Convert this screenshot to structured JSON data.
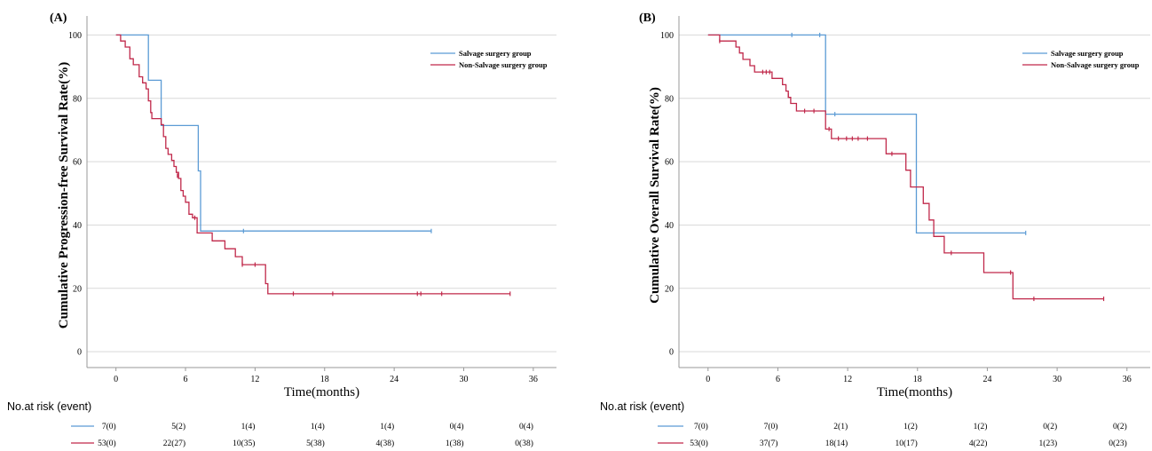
{
  "colors": {
    "salvage": "#5b9bd5",
    "non_salvage": "#c0284a",
    "grid": "#d9d9d9"
  },
  "chart_data": [
    {
      "type": "line",
      "subtype": "kaplan-meier",
      "panel_label": "(A)",
      "xlabel": "Time(months)",
      "ylabel": "Cumulative Progression-free Survival Rate(%)",
      "xlim": [
        -2.5,
        38
      ],
      "ylim": [
        -5,
        106
      ],
      "xticks": [
        0,
        6,
        12,
        18,
        24,
        30,
        36
      ],
      "yticks": [
        0,
        20,
        40,
        60,
        80,
        100
      ],
      "grid": "horizontal",
      "legend_position": "top-right",
      "series": [
        {
          "name": "Salvage surgery group",
          "color_key": "salvage",
          "steps": [
            [
              0,
              100
            ],
            [
              2.8,
              100
            ],
            [
              2.8,
              85.7
            ],
            [
              3.9,
              85.7
            ],
            [
              3.9,
              71.4
            ],
            [
              7.1,
              71.4
            ],
            [
              7.1,
              57.1
            ],
            [
              7.3,
              57.1
            ],
            [
              7.3,
              38.1
            ],
            [
              27.2,
              38.1
            ]
          ],
          "censor": [
            [
              11,
              38.1
            ],
            [
              27.2,
              38.1
            ]
          ]
        },
        {
          "name": "Non-Salvage surgery group",
          "color_key": "non_salvage",
          "steps": [
            [
              0,
              100
            ],
            [
              0.4,
              100
            ],
            [
              0.4,
              98.1
            ],
            [
              0.8,
              98.1
            ],
            [
              0.8,
              96.2
            ],
            [
              1.2,
              96.2
            ],
            [
              1.2,
              92.5
            ],
            [
              1.5,
              92.5
            ],
            [
              1.5,
              90.6
            ],
            [
              2.0,
              90.6
            ],
            [
              2.0,
              86.8
            ],
            [
              2.3,
              86.8
            ],
            [
              2.3,
              84.9
            ],
            [
              2.6,
              84.9
            ],
            [
              2.6,
              83.0
            ],
            [
              2.8,
              83.0
            ],
            [
              2.8,
              79.2
            ],
            [
              3.0,
              79.2
            ],
            [
              3.0,
              75.5
            ],
            [
              3.1,
              75.5
            ],
            [
              3.1,
              73.6
            ],
            [
              3.9,
              73.6
            ],
            [
              3.9,
              71.7
            ],
            [
              4.1,
              71.7
            ],
            [
              4.1,
              67.9
            ],
            [
              4.3,
              67.9
            ],
            [
              4.3,
              64.2
            ],
            [
              4.5,
              64.2
            ],
            [
              4.5,
              62.3
            ],
            [
              4.8,
              62.3
            ],
            [
              4.8,
              60.4
            ],
            [
              5.0,
              60.4
            ],
            [
              5.0,
              58.5
            ],
            [
              5.2,
              58.5
            ],
            [
              5.2,
              56.6
            ],
            [
              5.4,
              56.6
            ],
            [
              5.4,
              54.7
            ],
            [
              5.6,
              54.7
            ],
            [
              5.6,
              50.9
            ],
            [
              5.8,
              50.9
            ],
            [
              5.8,
              49.1
            ],
            [
              6.0,
              49.1
            ],
            [
              6.0,
              47.2
            ],
            [
              6.3,
              47.2
            ],
            [
              6.3,
              43.4
            ],
            [
              6.6,
              43.4
            ],
            [
              6.6,
              42.3
            ],
            [
              7.0,
              42.3
            ],
            [
              7.0,
              37.5
            ],
            [
              8.3,
              37.5
            ],
            [
              8.3,
              35.0
            ],
            [
              9.4,
              35.0
            ],
            [
              9.4,
              32.5
            ],
            [
              10.3,
              32.5
            ],
            [
              10.3,
              30.0
            ],
            [
              10.9,
              30.0
            ],
            [
              10.9,
              27.5
            ],
            [
              12.9,
              27.5
            ],
            [
              12.9,
              21.5
            ],
            [
              13.1,
              21.5
            ],
            [
              13.1,
              18.3
            ],
            [
              34.0,
              18.3
            ]
          ],
          "censor": [
            [
              5.3,
              55.6
            ],
            [
              6.8,
              42.3
            ],
            [
              10.9,
              27.5
            ],
            [
              12.0,
              27.5
            ],
            [
              15.3,
              18.3
            ],
            [
              18.7,
              18.3
            ],
            [
              26.0,
              18.3
            ],
            [
              26.3,
              18.3
            ],
            [
              28.1,
              18.3
            ],
            [
              34.0,
              18.3
            ]
          ]
        }
      ],
      "risk_table": {
        "title": "No.at risk (event)",
        "times": [
          0,
          6,
          12,
          18,
          24,
          30,
          36
        ],
        "rows": [
          {
            "series_key": "salvage",
            "cells": [
              "7(0)",
              "5(2)",
              "1(4)",
              "1(4)",
              "1(4)",
              "0(4)",
              "0(4)"
            ]
          },
          {
            "series_key": "non_salvage",
            "cells": [
              "53(0)",
              "22(27)",
              "10(35)",
              "5(38)",
              "4(38)",
              "1(38)",
              "0(38)"
            ]
          }
        ]
      }
    },
    {
      "type": "line",
      "subtype": "kaplan-meier",
      "panel_label": "(B)",
      "xlabel": "Time(months)",
      "ylabel": "Cumulative Overall Survival Rate(%)",
      "xlim": [
        -2.5,
        38
      ],
      "ylim": [
        -5,
        106
      ],
      "xticks": [
        0,
        6,
        12,
        18,
        24,
        30,
        36
      ],
      "yticks": [
        0,
        20,
        40,
        60,
        80,
        100
      ],
      "grid": "horizontal",
      "legend_position": "top-right",
      "series": [
        {
          "name": "Salvage surgery group",
          "color_key": "salvage",
          "steps": [
            [
              0,
              100
            ],
            [
              10.1,
              100
            ],
            [
              10.1,
              75.0
            ],
            [
              17.9,
              75.0
            ],
            [
              17.9,
              37.5
            ],
            [
              27.3,
              37.5
            ]
          ],
          "censor": [
            [
              7.2,
              100
            ],
            [
              9.6,
              100
            ],
            [
              10.9,
              75.0
            ],
            [
              27.3,
              37.5
            ]
          ]
        },
        {
          "name": "Non-Salvage surgery group",
          "color_key": "non_salvage",
          "steps": [
            [
              0,
              100
            ],
            [
              1.0,
              100
            ],
            [
              1.0,
              98.1
            ],
            [
              2.4,
              98.1
            ],
            [
              2.4,
              96.2
            ],
            [
              2.7,
              96.2
            ],
            [
              2.7,
              94.3
            ],
            [
              3.0,
              94.3
            ],
            [
              3.0,
              92.3
            ],
            [
              3.6,
              92.3
            ],
            [
              3.6,
              90.3
            ],
            [
              4.0,
              90.3
            ],
            [
              4.0,
              88.3
            ],
            [
              5.5,
              88.3
            ],
            [
              5.5,
              86.3
            ],
            [
              6.4,
              86.3
            ],
            [
              6.4,
              84.3
            ],
            [
              6.7,
              84.3
            ],
            [
              6.7,
              82.3
            ],
            [
              6.9,
              82.3
            ],
            [
              6.9,
              80.3
            ],
            [
              7.1,
              80.3
            ],
            [
              7.1,
              78.4
            ],
            [
              7.6,
              78.4
            ],
            [
              7.6,
              76.0
            ],
            [
              10.1,
              76.0
            ],
            [
              10.1,
              70.3
            ],
            [
              10.6,
              70.3
            ],
            [
              10.6,
              67.3
            ],
            [
              15.3,
              67.3
            ],
            [
              15.3,
              62.5
            ],
            [
              17.0,
              62.5
            ],
            [
              17.0,
              57.3
            ],
            [
              17.4,
              57.3
            ],
            [
              17.4,
              52.0
            ],
            [
              18.5,
              52.0
            ],
            [
              18.5,
              46.8
            ],
            [
              19.0,
              46.8
            ],
            [
              19.0,
              41.6
            ],
            [
              19.4,
              41.6
            ],
            [
              19.4,
              36.4
            ],
            [
              20.3,
              36.4
            ],
            [
              20.3,
              31.2
            ],
            [
              23.7,
              31.2
            ],
            [
              23.7,
              25.0
            ],
            [
              26.2,
              25.0
            ],
            [
              26.2,
              16.7
            ],
            [
              34.0,
              16.7
            ]
          ],
          "censor": [
            [
              1.0,
              98.1
            ],
            [
              4.7,
              88.3
            ],
            [
              5.0,
              88.3
            ],
            [
              5.3,
              88.3
            ],
            [
              6.9,
              81.0
            ],
            [
              8.3,
              76.0
            ],
            [
              9.1,
              76.0
            ],
            [
              10.4,
              70.3
            ],
            [
              11.2,
              67.3
            ],
            [
              11.9,
              67.3
            ],
            [
              12.4,
              67.3
            ],
            [
              12.9,
              67.3
            ],
            [
              13.7,
              67.3
            ],
            [
              15.8,
              62.5
            ],
            [
              20.9,
              31.2
            ],
            [
              26.0,
              25.0
            ],
            [
              28.0,
              16.7
            ],
            [
              34.0,
              16.7
            ]
          ]
        }
      ],
      "risk_table": {
        "title": "No.at risk (event)",
        "times": [
          0,
          6,
          12,
          18,
          24,
          30,
          36
        ],
        "rows": [
          {
            "series_key": "salvage",
            "cells": [
              "7(0)",
              "7(0)",
              "2(1)",
              "1(2)",
              "1(2)",
              "0(2)",
              "0(2)"
            ]
          },
          {
            "series_key": "non_salvage",
            "cells": [
              "53(0)",
              "37(7)",
              "18(14)",
              "10(17)",
              "4(22)",
              "1(23)",
              "0(23)"
            ]
          }
        ]
      }
    }
  ]
}
